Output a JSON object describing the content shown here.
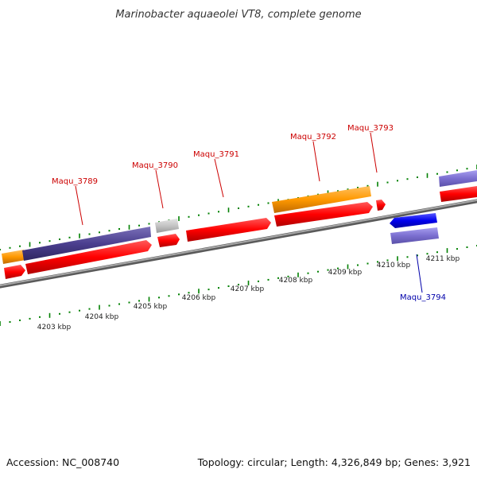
{
  "title": "Marinobacter aquaeolei VT8, complete genome",
  "footer": {
    "accession": "Accession: NC_008740",
    "summary": "Topology: circular; Length: 4,326,849 bp; Genes: 3,921"
  },
  "axis_labels": [
    "4203 kbp",
    "4204 kbp",
    "4205 kbp",
    "4206 kbp",
    "4207 kbp",
    "4208 kbp",
    "4209 kbp",
    "4210 kbp",
    "4211 kbp"
  ],
  "gene_labels": [
    "Maqu_3789",
    "Maqu_3790",
    "Maqu_3791",
    "Maqu_3792",
    "Maqu_3793",
    "Maqu_3794"
  ],
  "colors": {
    "backbone": "#888888",
    "cds_forward": "#ff0000",
    "cds_reverse": "#0000ee",
    "gene_orange": "#ff9900",
    "gene_purple": "#4b3f8f",
    "gene_lavender": "#7b6fd0",
    "gene_gray": "#c0c0c0",
    "tick": "#008000",
    "label_forward": "#cc0000",
    "label_reverse": "#0000aa"
  }
}
